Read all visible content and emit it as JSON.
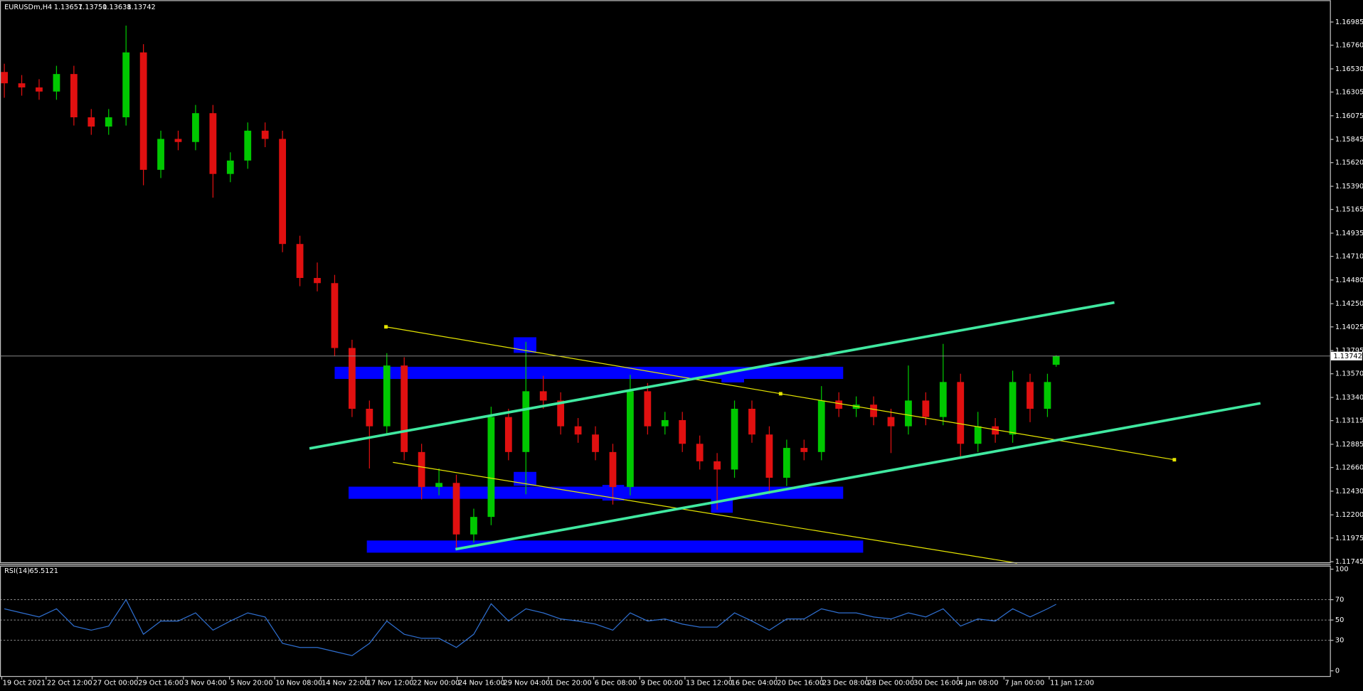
{
  "chart_data": {
    "type": "candlestick",
    "symbol": "EURUSDm,H4",
    "last_bar_labels": [
      "1.13657",
      "1.13750",
      "1.13638",
      "1.13742"
    ],
    "up_color": "#00c800",
    "down_color": "#e01010",
    "x": [
      0,
      1,
      2,
      3,
      4,
      5,
      6,
      7,
      8,
      9,
      10,
      11,
      12,
      13,
      14,
      15,
      16,
      17,
      18,
      19,
      20,
      21,
      22,
      23,
      24,
      25,
      26,
      27,
      28,
      29,
      30,
      31,
      32,
      33,
      34,
      35,
      36,
      37,
      38,
      39,
      40,
      41,
      42,
      43,
      44,
      45,
      46,
      47,
      48,
      49,
      50,
      51,
      52,
      53,
      54,
      55,
      56,
      57,
      58,
      59,
      60,
      60.5
    ],
    "open": [
      1.165,
      1.1639,
      1.1635,
      1.1631,
      1.1648,
      1.1606,
      1.1597,
      1.1606,
      1.1669,
      1.1555,
      1.1585,
      1.1582,
      1.161,
      1.1551,
      1.1564,
      1.1593,
      1.1585,
      1.1483,
      1.145,
      1.1445,
      1.1382,
      1.1323,
      1.1306,
      1.1365,
      1.1281,
      1.1247,
      1.1251,
      1.1201,
      1.1218,
      1.1315,
      1.1281,
      1.134,
      1.1331,
      1.1306,
      1.1298,
      1.1281,
      1.1247,
      1.134,
      1.1306,
      1.1312,
      1.1289,
      1.1272,
      1.1264,
      1.1323,
      1.1298,
      1.1256,
      1.1285,
      1.1281,
      1.1331,
      1.1323,
      1.1327,
      1.1315,
      1.1306,
      1.1331,
      1.1315,
      1.1349,
      1.1289,
      1.1306,
      1.1298,
      1.1349,
      1.1323,
      1.13657
    ],
    "high": [
      1.1658,
      1.1647,
      1.1643,
      1.1656,
      1.1656,
      1.1614,
      1.1614,
      1.1695,
      1.1677,
      1.1593,
      1.1593,
      1.1618,
      1.1618,
      1.1572,
      1.1601,
      1.1601,
      1.1593,
      1.1491,
      1.1465,
      1.1453,
      1.139,
      1.1331,
      1.1377,
      1.1373,
      1.1289,
      1.1265,
      1.1259,
      1.1226,
      1.1325,
      1.1323,
      1.1388,
      1.1355,
      1.1339,
      1.1314,
      1.1306,
      1.1289,
      1.1356,
      1.1348,
      1.132,
      1.132,
      1.1297,
      1.128,
      1.1331,
      1.1331,
      1.1306,
      1.1293,
      1.1293,
      1.1345,
      1.1339,
      1.1335,
      1.1335,
      1.1323,
      1.1365,
      1.1339,
      1.1386,
      1.1357,
      1.132,
      1.1314,
      1.136,
      1.1357,
      1.1357,
      1.1375
    ],
    "low": [
      1.1625,
      1.1627,
      1.1623,
      1.1623,
      1.1598,
      1.1589,
      1.1589,
      1.1598,
      1.154,
      1.1547,
      1.1574,
      1.1574,
      1.1528,
      1.1543,
      1.1556,
      1.1577,
      1.1475,
      1.1442,
      1.1437,
      1.1374,
      1.1315,
      1.1265,
      1.1298,
      1.1273,
      1.1235,
      1.1239,
      1.1188,
      1.1193,
      1.121,
      1.1273,
      1.124,
      1.1323,
      1.1298,
      1.129,
      1.1273,
      1.123,
      1.1239,
      1.1298,
      1.1298,
      1.1281,
      1.1264,
      1.1225,
      1.1256,
      1.129,
      1.124,
      1.1248,
      1.1273,
      1.1273,
      1.1315,
      1.1315,
      1.1307,
      1.128,
      1.1298,
      1.1307,
      1.1307,
      1.1275,
      1.1281,
      1.129,
      1.129,
      1.131,
      1.1315,
      1.13638
    ],
    "close": [
      1.1639,
      1.1635,
      1.1631,
      1.1648,
      1.1606,
      1.1597,
      1.1606,
      1.1669,
      1.1555,
      1.1585,
      1.1582,
      1.161,
      1.1551,
      1.1564,
      1.1593,
      1.1585,
      1.1483,
      1.145,
      1.1445,
      1.1382,
      1.1323,
      1.1306,
      1.1365,
      1.1281,
      1.1247,
      1.1251,
      1.1201,
      1.1218,
      1.1315,
      1.1281,
      1.134,
      1.1331,
      1.1306,
      1.1298,
      1.1281,
      1.1247,
      1.134,
      1.1306,
      1.1312,
      1.1289,
      1.1272,
      1.1264,
      1.1323,
      1.1298,
      1.1256,
      1.1285,
      1.1281,
      1.1331,
      1.1323,
      1.1327,
      1.1315,
      1.1306,
      1.1331,
      1.1315,
      1.1349,
      1.1289,
      1.1306,
      1.1298,
      1.1349,
      1.1323,
      1.1349,
      1.13742
    ],
    "xlim": [
      -0.25,
      76.25
    ],
    "xticks": [
      {
        "value": -0.15,
        "label": "19 Oct 2021"
      },
      {
        "value": 2.4,
        "label": "22 Oct 12:00"
      },
      {
        "value": 5.05,
        "label": "27 Oct 00:00"
      },
      {
        "value": 7.65,
        "label": "29 Oct 16:00"
      },
      {
        "value": 10.3,
        "label": "3 Nov 04:00"
      },
      {
        "value": 12.95,
        "label": "5 Nov 20:00"
      },
      {
        "value": 15.55,
        "label": "10 Nov 08:00"
      },
      {
        "value": 18.2,
        "label": "14 Nov 22:00"
      },
      {
        "value": 20.8,
        "label": "17 Nov 12:00"
      },
      {
        "value": 23.45,
        "label": "22 Nov 00:00"
      },
      {
        "value": 26.05,
        "label": "24 Nov 16:00"
      },
      {
        "value": 28.65,
        "label": "29 Nov 04:00"
      },
      {
        "value": 31.3,
        "label": "1 Dec 20:00"
      },
      {
        "value": 33.9,
        "label": "6 Dec 08:00"
      },
      {
        "value": 36.55,
        "label": "9 Dec 00:00"
      },
      {
        "value": 39.15,
        "label": "13 Dec 12:00"
      },
      {
        "value": 41.75,
        "label": "16 Dec 04:00"
      },
      {
        "value": 44.4,
        "label": "20 Dec 16:00"
      },
      {
        "value": 47.0,
        "label": "23 Dec 08:00"
      },
      {
        "value": 49.6,
        "label": "28 Dec 00:00"
      },
      {
        "value": 52.25,
        "label": "30 Dec 16:00"
      },
      {
        "value": 54.85,
        "label": "4 Jan 08:00"
      },
      {
        "value": 57.5,
        "label": "7 Jan 00:00"
      },
      {
        "value": 60.1,
        "label": "11 Jan 12:00"
      }
    ],
    "ylim": [
      1.1174,
      1.1718
    ],
    "yticks": [
      1.16985,
      {
        "value": 1.1676,
        "label": "1.16760"
      },
      {
        "value": 1.1653,
        "label": "1.16530"
      },
      1.16305,
      1.16075,
      1.15845,
      {
        "value": 1.1562,
        "label": "1.15620"
      },
      {
        "value": 1.1539,
        "label": "1.15390"
      },
      1.15165,
      1.14935,
      {
        "value": 1.1471,
        "label": "1.14710"
      },
      {
        "value": 1.1448,
        "label": "1.14480"
      },
      {
        "value": 1.1425,
        "label": "1.14250"
      },
      1.14025,
      1.13795,
      {
        "value": 1.1357,
        "label": "1.13570"
      },
      {
        "value": 1.1334,
        "label": "1.13340"
      },
      1.13115,
      1.12885,
      {
        "value": 1.1266,
        "label": "1.12660"
      },
      {
        "value": 1.1243,
        "label": "1.12430"
      },
      {
        "value": 1.122,
        "label": "1.12200"
      },
      1.11975,
      1.11745
    ],
    "rsi": {
      "name": "RSI(14)",
      "color": "#2f6fd0",
      "values": [
        61,
        57,
        53,
        61,
        44,
        40,
        44,
        70,
        36,
        49,
        49,
        57,
        40,
        49,
        57,
        53,
        27,
        23,
        23,
        19,
        15,
        27,
        49,
        36,
        32,
        32,
        23,
        36,
        66,
        49,
        61,
        57,
        51,
        49,
        46,
        40,
        57,
        49,
        51,
        46,
        43,
        43,
        57,
        49,
        40,
        51,
        51,
        61,
        57,
        57,
        53,
        51,
        57,
        53,
        61,
        44,
        51,
        49,
        61,
        53,
        61,
        65.5121
      ],
      "ylim": [
        0,
        100
      ],
      "yticks": [
        100,
        70,
        50,
        30,
        0
      ],
      "levels": [
        70,
        50,
        30
      ]
    }
  }
}
